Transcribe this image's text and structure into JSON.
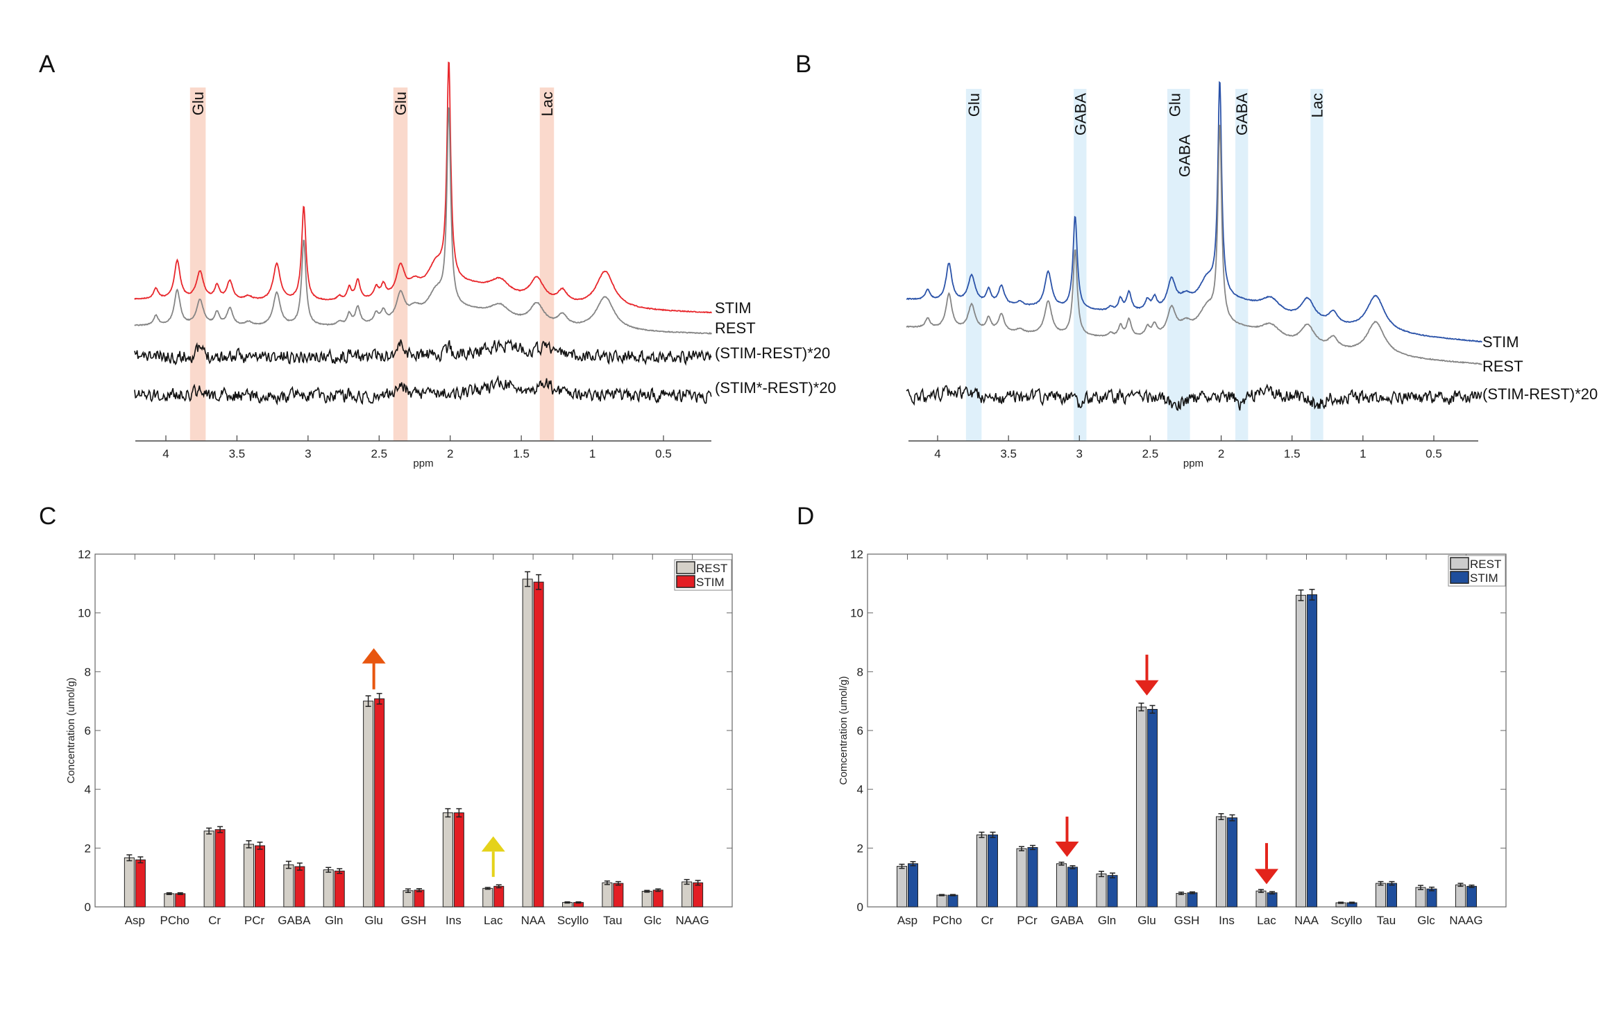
{
  "panel_labels": {
    "a": "A",
    "b": "B",
    "c": "C",
    "d": "D"
  },
  "chart_data": [
    {
      "panel": "A",
      "type": "line",
      "xlabel": "ppm",
      "xlim": [
        4.22,
        0.16
      ],
      "x_reversed": true,
      "y_axis_shown": false,
      "xticks": [
        "4",
        "3.5",
        "3",
        "2.5",
        "2",
        "1.5",
        "1",
        "0.5"
      ],
      "bands": [
        {
          "labels": [
            "Glu"
          ],
          "from": 3.83,
          "to": 3.72
        },
        {
          "labels": [
            "Glu"
          ],
          "from": 2.4,
          "to": 2.3
        },
        {
          "labels": [
            "Lac"
          ],
          "from": 1.37,
          "to": 1.27
        }
      ],
      "band_color": "#fad9cc",
      "series": [
        {
          "name": "STIM",
          "color": "#e8262b",
          "kind": "spectrum",
          "scale": 1.1
        },
        {
          "name": "REST",
          "color": "#858585",
          "kind": "spectrum",
          "scale": 1.0
        },
        {
          "name": "(STIM-REST)*20",
          "color": "#111111",
          "kind": "difference",
          "peaks": [
            [
              3.76,
              0.25,
              0.03
            ],
            [
              2.35,
              0.4,
              0.03
            ],
            [
              2.01,
              0.5,
              0.008
            ],
            [
              1.62,
              0.35,
              0.2
            ],
            [
              1.32,
              0.3,
              0.04
            ]
          ]
        },
        {
          "name": "(STIM*-REST)*20",
          "color": "#111111",
          "kind": "difference",
          "peaks": [
            [
              3.76,
              0.2,
              0.03
            ],
            [
              2.35,
              0.35,
              0.03
            ],
            [
              1.62,
              0.35,
              0.2
            ],
            [
              1.32,
              0.3,
              0.04
            ]
          ]
        }
      ]
    },
    {
      "panel": "B",
      "type": "line",
      "xlabel": "ppm",
      "xlim": [
        4.22,
        0.16
      ],
      "x_reversed": true,
      "y_axis_shown": false,
      "xticks": [
        "4",
        "3.5",
        "3",
        "2.5",
        "2",
        "1.5",
        "1",
        "0.5"
      ],
      "bands": [
        {
          "labels": [
            "Glu"
          ],
          "from": 3.8,
          "to": 3.69
        },
        {
          "labels": [
            "GABA"
          ],
          "from": 3.04,
          "to": 2.95
        },
        {
          "labels": [
            "Glu",
            "GABA"
          ],
          "from": 2.38,
          "to": 2.22
        },
        {
          "labels": [
            "GABA"
          ],
          "from": 1.9,
          "to": 1.81
        },
        {
          "labels": [
            "Lac"
          ],
          "from": 1.37,
          "to": 1.28
        }
      ],
      "band_color": "#dff0fa",
      "series": [
        {
          "name": "STIM",
          "color": "#2a52a8",
          "kind": "spectrum",
          "scale": 1.08
        },
        {
          "name": "REST",
          "color": "#858585",
          "kind": "spectrum",
          "scale": 1.0
        },
        {
          "name": "(STIM-REST)*20",
          "color": "#111111",
          "kind": "difference",
          "peaks": [
            [
              3.9,
              0.2,
              0.08
            ],
            [
              3.0,
              -0.3,
              0.03
            ],
            [
              2.32,
              -0.3,
              0.05
            ],
            [
              1.85,
              -0.3,
              0.03
            ],
            [
              1.7,
              0.25,
              0.08
            ],
            [
              1.32,
              -0.25,
              0.04
            ]
          ]
        }
      ]
    },
    {
      "panel": "C",
      "type": "bar",
      "ylabel": "Concentration (umol/g)",
      "ylim": [
        0,
        12
      ],
      "yticks": [
        "0",
        "2",
        "4",
        "6",
        "8",
        "10",
        "12"
      ],
      "legend_position": "top-right",
      "categories": [
        "Asp",
        "PCho",
        "Cr",
        "PCr",
        "GABA",
        "Gln",
        "Glu",
        "GSH",
        "Ins",
        "Lac",
        "NAA",
        "Scyllo",
        "Tau",
        "Glc",
        "NAAG"
      ],
      "series": [
        {
          "name": "REST",
          "color": "#d4d0c8",
          "values": [
            1.67,
            0.45,
            2.58,
            2.13,
            1.43,
            1.26,
            7.0,
            0.55,
            3.2,
            0.63,
            11.15,
            0.15,
            0.82,
            0.53,
            0.85
          ],
          "errors": [
            0.1,
            0.03,
            0.1,
            0.12,
            0.12,
            0.08,
            0.18,
            0.06,
            0.14,
            0.03,
            0.25,
            0.02,
            0.06,
            0.03,
            0.08
          ]
        },
        {
          "name": "STIM",
          "color": "#e31e24",
          "values": [
            1.6,
            0.45,
            2.63,
            2.08,
            1.37,
            1.22,
            7.08,
            0.57,
            3.2,
            0.7,
            11.05,
            0.15,
            0.8,
            0.57,
            0.82
          ],
          "errors": [
            0.1,
            0.03,
            0.1,
            0.12,
            0.12,
            0.08,
            0.18,
            0.05,
            0.14,
            0.05,
            0.25,
            0.02,
            0.06,
            0.04,
            0.08
          ]
        }
      ],
      "annotations": [
        {
          "type": "arrow",
          "category": "Glu",
          "from": 7.4,
          "to": 8.8,
          "color": "#e8560f"
        },
        {
          "type": "arrow",
          "category": "Lac",
          "from": 1.02,
          "to": 2.4,
          "color": "#e5d21a"
        }
      ]
    },
    {
      "panel": "D",
      "type": "bar",
      "ylabel": "Comcentration (umol/g)",
      "ylim": [
        0,
        12
      ],
      "yticks": [
        "0",
        "2",
        "4",
        "6",
        "8",
        "10",
        "12"
      ],
      "legend_position": "top-right",
      "categories": [
        "Asp",
        "PCho",
        "Cr",
        "PCr",
        "GABA",
        "Gln",
        "Glu",
        "GSH",
        "Ins",
        "Lac",
        "NAA",
        "Scyllo",
        "Tau",
        "Glc",
        "NAAG"
      ],
      "series": [
        {
          "name": "REST",
          "color": "#cccccc",
          "values": [
            1.38,
            0.4,
            2.45,
            1.98,
            1.47,
            1.12,
            6.8,
            0.46,
            3.07,
            0.54,
            10.6,
            0.14,
            0.8,
            0.66,
            0.75
          ],
          "errors": [
            0.07,
            0.02,
            0.09,
            0.07,
            0.05,
            0.09,
            0.13,
            0.04,
            0.1,
            0.05,
            0.18,
            0.02,
            0.06,
            0.07,
            0.05
          ]
        },
        {
          "name": "STIM",
          "color": "#1f4e9c",
          "values": [
            1.47,
            0.4,
            2.45,
            2.02,
            1.35,
            1.07,
            6.72,
            0.48,
            3.03,
            0.48,
            10.62,
            0.14,
            0.8,
            0.61,
            0.7
          ],
          "errors": [
            0.07,
            0.02,
            0.09,
            0.07,
            0.05,
            0.08,
            0.13,
            0.03,
            0.1,
            0.04,
            0.18,
            0.02,
            0.06,
            0.06,
            0.04
          ]
        }
      ],
      "annotations": [
        {
          "type": "arrow",
          "category": "GABA",
          "from": 3.07,
          "to": 1.7,
          "color": "#e3241b"
        },
        {
          "type": "arrow",
          "category": "Glu",
          "from": 8.58,
          "to": 7.19,
          "color": "#e3241b"
        },
        {
          "type": "arrow",
          "category": "Lac",
          "from": 2.17,
          "to": 0.77,
          "color": "#e3241b"
        }
      ]
    }
  ],
  "spectrum_peaks": [
    [
      4.07,
      0.3,
      0.02
    ],
    [
      3.92,
      1.1,
      0.025
    ],
    [
      3.76,
      0.8,
      0.03
    ],
    [
      3.64,
      0.4,
      0.02
    ],
    [
      3.55,
      0.55,
      0.025
    ],
    [
      3.42,
      0.12,
      0.03
    ],
    [
      3.22,
      1.05,
      0.03
    ],
    [
      3.03,
      2.7,
      0.018
    ],
    [
      2.78,
      0.12,
      0.02
    ],
    [
      2.71,
      0.35,
      0.018
    ],
    [
      2.65,
      0.55,
      0.02
    ],
    [
      2.52,
      0.3,
      0.02
    ],
    [
      2.47,
      0.35,
      0.02
    ],
    [
      2.35,
      0.85,
      0.035
    ],
    [
      2.25,
      0.3,
      0.05
    ],
    [
      2.1,
      0.7,
      0.07
    ],
    [
      2.01,
      6.2,
      0.016
    ],
    [
      1.9,
      0.6,
      0.35
    ],
    [
      1.65,
      0.4,
      0.08
    ],
    [
      1.39,
      0.65,
      0.06
    ],
    [
      1.21,
      0.35,
      0.04
    ],
    [
      0.91,
      1.05,
      0.075
    ]
  ]
}
